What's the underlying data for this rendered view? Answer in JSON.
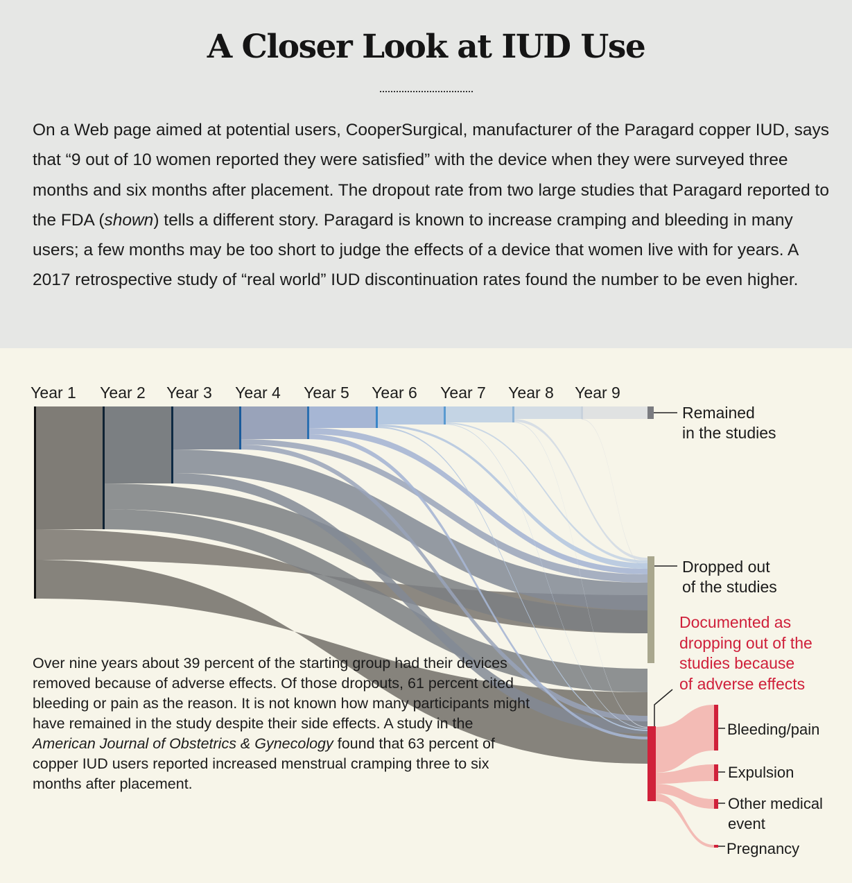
{
  "header": {
    "title": "A Closer Look at IUD Use",
    "intro_p1": "On a Web page aimed at potential users, CooperSurgical, manufacturer of the Paragard copper IUD, says that “9 out of 10 women reported they were satisfied” with the device when they were surveyed three months and six months after placement. The dropout rate from two large studies that Paragard reported to the FDA (",
    "intro_em": "shown",
    "intro_p2": ") tells a different story. Paragard is known to increase cramping and bleeding in many users; a few months may be too short to judge the effects of a device that women live with for years. A 2017 retro­spective study of “real world” IUD discontinuation rates found the number to be even higher."
  },
  "diagram": {
    "years": [
      "Year 1",
      "Year 2",
      "Year 3",
      "Year 4",
      "Year 5",
      "Year 6",
      "Year 7",
      "Year 8",
      "Year 9"
    ],
    "outcomes": {
      "remained": [
        "Remained",
        "in the studies"
      ],
      "dropped": [
        "Dropped out",
        "of the studies"
      ],
      "adverse": [
        "Documented as",
        "dropping out of the",
        "studies because",
        "of adverse effects"
      ]
    },
    "adverse_reasons": [
      "Bleeding/pain",
      "Expulsion",
      "Other medical",
      "event",
      "Pregnancy"
    ],
    "colors": {
      "year_bands": [
        "#7f7c76",
        "#7b7f82",
        "#838a95",
        "#99a3ba",
        "#a6b6d4",
        "#b5c8e0",
        "#c4d4e4",
        "#d3dce4",
        "#e0e2e2"
      ],
      "dropped_node": "#a9a78e",
      "adverse_node": "#d0213a",
      "reason_flows": "#f2b7b2",
      "remained_node": "#7a7b80"
    }
  },
  "note": {
    "p1": "Over nine years about 39 percent of the starting group had their devices removed because of adverse effects. Of those dropouts, 61 percent cited bleeding or pain as the reason. It is not known how many partici­pants might have remained in the study despite their side effects. A study in the ",
    "em": "American Journal of Obstetrics & Gynecology",
    "p2": " found that 63 percent of copper IUD users reported increased menstrual cramping three to six months after placement."
  }
}
